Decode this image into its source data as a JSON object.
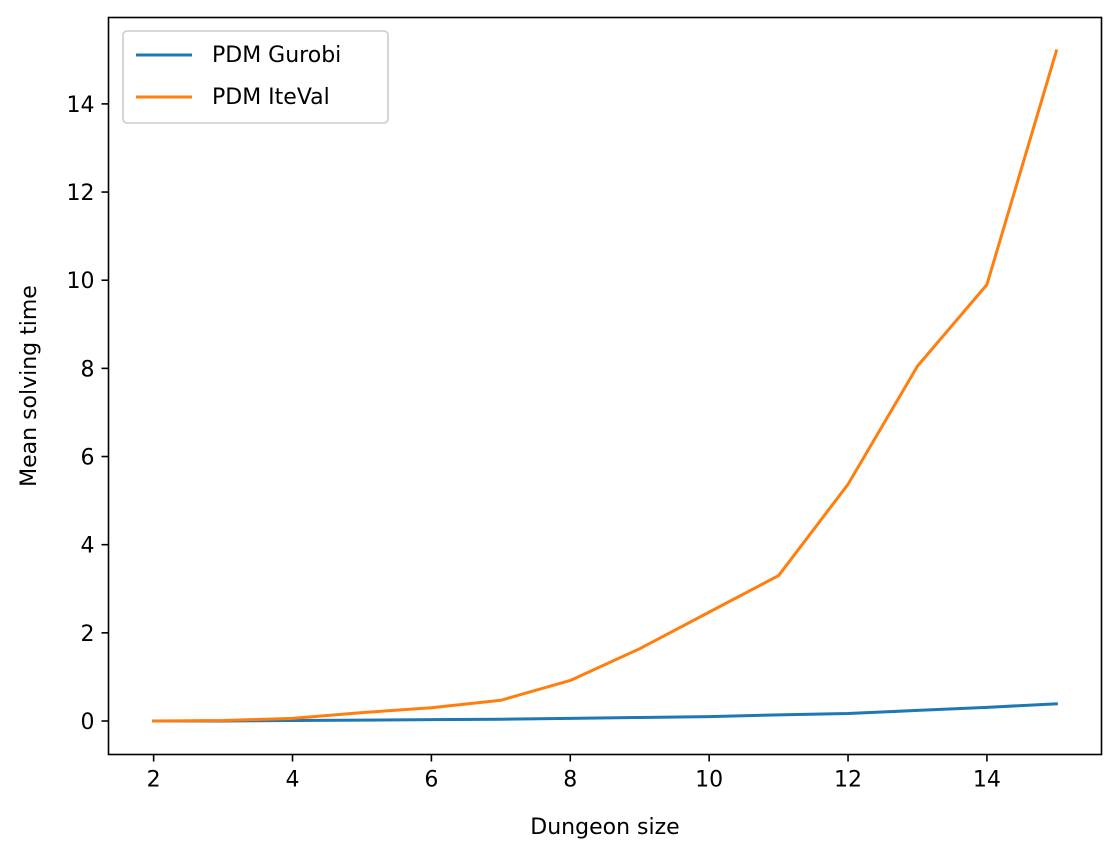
{
  "chart_data": {
    "type": "line",
    "x": [
      2,
      3,
      4,
      5,
      6,
      7,
      8,
      9,
      10,
      11,
      12,
      13,
      14,
      15
    ],
    "series": [
      {
        "name": "PDM Gurobi",
        "color": "#1f77b4",
        "values": [
          0.0,
          0.0,
          0.01,
          0.02,
          0.03,
          0.04,
          0.06,
          0.08,
          0.1,
          0.14,
          0.17,
          0.24,
          0.31,
          0.39
        ]
      },
      {
        "name": "PDM IteVal",
        "color": "#ff7f0e",
        "values": [
          0.0,
          0.01,
          0.06,
          0.19,
          0.3,
          0.47,
          0.92,
          1.64,
          2.47,
          3.3,
          5.37,
          8.05,
          9.9,
          15.2
        ]
      }
    ],
    "xlabel": "Dungeon size",
    "ylabel": "Mean solving time",
    "xlim": [
      1.35,
      15.65
    ],
    "ylim": [
      -0.76,
      15.96
    ],
    "xticks": [
      "2",
      "4",
      "6",
      "8",
      "10",
      "12",
      "14"
    ],
    "yticks": [
      "0",
      "2",
      "4",
      "6",
      "8",
      "10",
      "12",
      "14"
    ],
    "legend_position": "top-left",
    "grid": false
  }
}
